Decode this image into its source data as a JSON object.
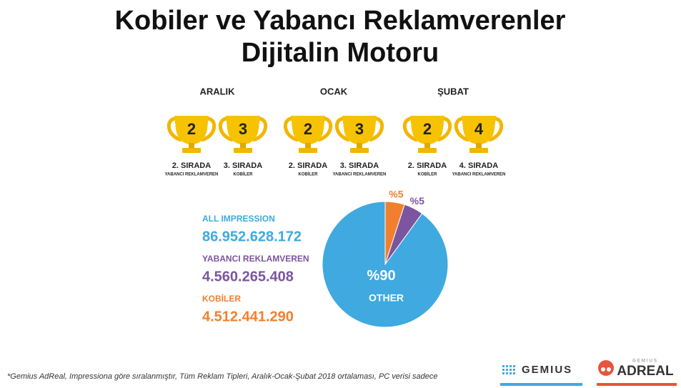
{
  "title": [
    "Kobiler ve Yabancı Reklamverenler",
    "Dijitalin Motoru"
  ],
  "months": [
    {
      "name": "ARALIK",
      "trophies": [
        {
          "number": "2",
          "rank": "2. SIRADA",
          "who": "YABANCI REKLAMVEREN"
        },
        {
          "number": "3",
          "rank": "3. SIRADA",
          "who": "KOBİLER"
        }
      ]
    },
    {
      "name": "OCAK",
      "trophies": [
        {
          "number": "2",
          "rank": "2. SIRADA",
          "who": "KOBİLER"
        },
        {
          "number": "3",
          "rank": "3. SIRADA",
          "who": "YABANCI REKLAMVEREN"
        }
      ]
    },
    {
      "name": "ŞUBAT",
      "trophies": [
        {
          "number": "2",
          "rank": "2. SIRADA",
          "who": "KOBİLER"
        },
        {
          "number": "4",
          "rank": "4. SIRADA",
          "who": "YABANCI REKLAMVEREN"
        }
      ]
    }
  ],
  "stats": [
    {
      "label": "ALL IMPRESSION",
      "value": "86.952.628.172",
      "color": "#3fa9e0"
    },
    {
      "label": "YABANCI REKLAMVEREN",
      "value": "4.560.265.408",
      "color": "#7b55a0"
    },
    {
      "label": "KOBİLER",
      "value": "4.512.441.290",
      "color": "#f08030"
    }
  ],
  "chart_data": {
    "type": "pie",
    "categories": [
      null,
      null,
      "OTHER"
    ],
    "values": [
      5,
      5,
      90
    ],
    "value_labels": [
      "%5",
      "%5",
      "%90"
    ],
    "colors": [
      "#f08030",
      "#7b55a0",
      "#3fa9e0"
    ]
  },
  "footnote": "*Gemius AdReal, Impressiona göre sıralanmıştır, Tüm Reklam Tipleri, Aralık-Ocak-Şubat 2018 ortalaması, PC verisi sadece",
  "logos": {
    "gemius": "GEMIUS",
    "adreal_top": "GEMIUS",
    "adreal": "ADREAL"
  }
}
